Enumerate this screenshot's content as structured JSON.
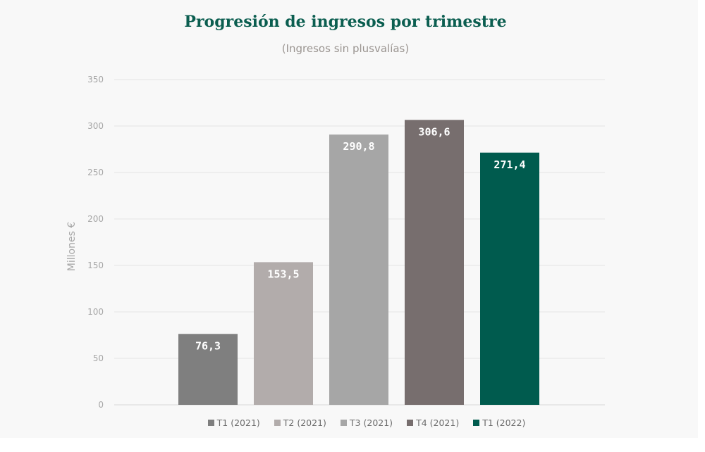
{
  "chart_data": {
    "type": "bar",
    "title": "Progresión de ingresos por trimestre",
    "subtitle": "(Ingresos sin plusvalías)",
    "ylabel": "Millones €",
    "xlabel": "",
    "ylim": [
      0,
      350
    ],
    "yticks": [
      "0",
      "50",
      "100",
      "150",
      "200",
      "250",
      "300",
      "350"
    ],
    "ytick_values": [
      0,
      50,
      100,
      150,
      200,
      250,
      300,
      350
    ],
    "grid": true,
    "legend_position": "bottom",
    "categories": [
      "T1 (2021)",
      "T2 (2021)",
      "T3 (2021)",
      "T4 (2021)",
      "T1 (2022)"
    ],
    "values": [
      76.3,
      153.5,
      290.8,
      306.6,
      271.4
    ],
    "data_labels": [
      "76,3",
      "153,5",
      "290,8",
      "306,6",
      "271,4"
    ],
    "colors": [
      "#7f7f7f",
      "#b2acab",
      "#a6a6a6",
      "#776e6e",
      "#005b4e"
    ],
    "title_color": "#0b5e50"
  }
}
